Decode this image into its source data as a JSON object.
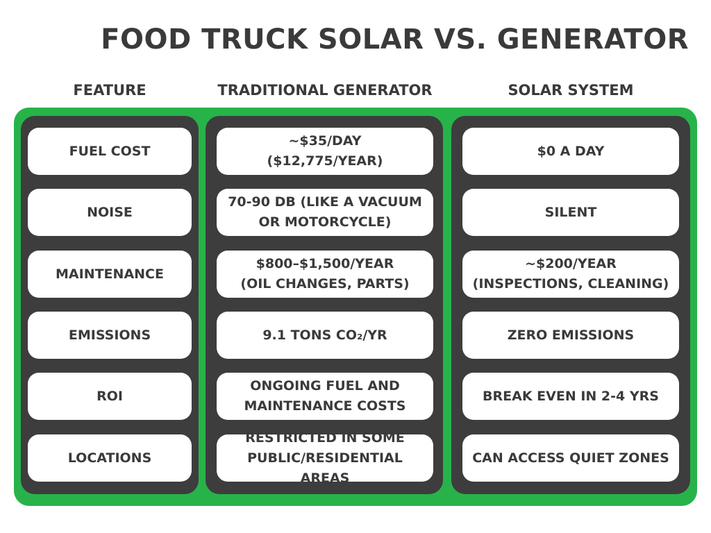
{
  "title": "FOOD TRUCK SOLAR VS. GENERATOR",
  "headers": {
    "feature": "FEATURE",
    "generator": "TRADITIONAL GENERATOR",
    "solar": "SOLAR SYSTEM"
  },
  "rows": [
    {
      "feature": "FUEL COST",
      "generator": "~$35/DAY\n($12,775/YEAR)",
      "solar": "$0 A DAY"
    },
    {
      "feature": "NOISE",
      "generator": "70-90 DB (LIKE A VACUUM\nOR MOTORCYCLE)",
      "solar": "SILENT"
    },
    {
      "feature": "MAINTENANCE",
      "generator": "$800–$1,500/YEAR\n(OIL CHANGES, PARTS)",
      "solar": "~$200/YEAR\n(INSPECTIONS, CLEANING)"
    },
    {
      "feature": "EMISSIONS",
      "generator": "9.1 TONS CO₂/YR",
      "solar": "ZERO EMISSIONS"
    },
    {
      "feature": "ROI",
      "generator": "ONGOING FUEL AND\nMAINTENANCE COSTS",
      "solar": "BREAK EVEN IN 2-4 YRS"
    },
    {
      "feature": "LOCATIONS",
      "generator": "RESTRICTED IN SOME\nPUBLIC/RESIDENTIAL AREAS",
      "solar": "CAN ACCESS QUIET ZONES"
    }
  ],
  "colors": {
    "frame": "#27b34a",
    "panel": "#3d3d3d",
    "cell": "#ffffff",
    "text": "#3a3a3a"
  }
}
